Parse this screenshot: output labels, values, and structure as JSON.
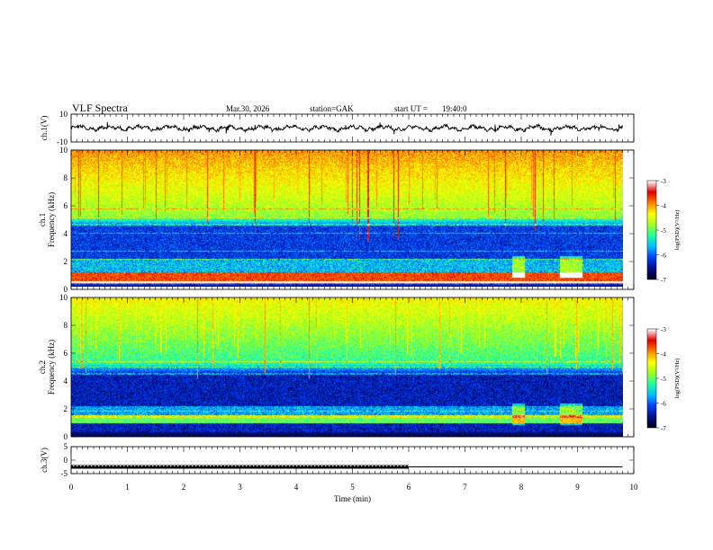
{
  "header": {
    "title": "VLF  Spectra",
    "date": "Mar.30, 2026",
    "station": "station=GAK",
    "start_label": "start  UT =",
    "start_time": "19:40:0"
  },
  "colors": {
    "trace": "#000000",
    "axis": "#000000",
    "white_band": "#ffffff",
    "colormap": [
      "#000020",
      "#00108a",
      "#0040ff",
      "#00c0ff",
      "#20ffa0",
      "#a0ff20",
      "#ffff00",
      "#ff8000",
      "#e00000",
      "#ffffff"
    ]
  },
  "chart_data": [
    {
      "type": "line",
      "name": "ch1-waveform",
      "ylabel": "ch.1(V)",
      "ylim": [
        -10,
        10
      ],
      "yticks": [
        "10",
        "-10"
      ],
      "xlim": [
        0,
        10
      ],
      "series": [
        {
          "name": "ch.1",
          "description": "fluctuating waveform",
          "mean": 0,
          "amplitude": 2.0
        }
      ]
    },
    {
      "type": "heatmap",
      "name": "ch1-spectrogram",
      "ylabel": "ch.1\nFrequency  (kHz)",
      "ylim": [
        0,
        10
      ],
      "yticks": [
        "0",
        "2",
        "4",
        "6",
        "8",
        "10"
      ],
      "xlim": [
        0,
        9.8
      ],
      "colorbar": {
        "label": "log(PSD)(V²/Hz)",
        "range": [
          -7,
          -3
        ],
        "ticks": [
          "-3",
          "-4",
          "-5",
          "-6",
          "-7"
        ]
      },
      "features": {
        "noise_floor_khz_0_to_5": -6.2,
        "sferic_level_above_5khz": -4.8,
        "band_0.4_to_1.2_khz": -3.6
      }
    },
    {
      "type": "heatmap",
      "name": "ch2-spectrogram",
      "ylabel": "ch.2\nFrequency  (kHz)",
      "ylim": [
        0,
        10
      ],
      "yticks": [
        "0",
        "2",
        "4",
        "6",
        "8",
        "10"
      ],
      "xlim": [
        0,
        9.8
      ],
      "colorbar": {
        "label": "log(PSD)(V²/Hz)",
        "range": [
          -7,
          -3
        ],
        "ticks": [
          "-3",
          "-4",
          "-5",
          "-6",
          "-7"
        ]
      },
      "features": {
        "noise_floor_khz_0_to_5": -6.4,
        "sferic_level_above_5khz": -5.2,
        "band_1.0_to_1.6_khz": -5.0
      }
    },
    {
      "type": "line",
      "name": "ch3-signal",
      "ylabel": "ch.3(V)",
      "ylim": [
        -5,
        5
      ],
      "yticks": [
        "5",
        "0",
        "-5"
      ],
      "xlabel": "Time  (min)",
      "xlim": [
        0,
        10
      ],
      "xticks": [
        "0",
        "1",
        "2",
        "3",
        "4",
        "5",
        "6",
        "7",
        "8",
        "9",
        "10"
      ],
      "series": [
        {
          "name": "ch.3-pulsed",
          "x": [
            0,
            6
          ],
          "y": -2.5
        },
        {
          "name": "ch.3-flat",
          "x": [
            6,
            9.8
          ],
          "y": -2.5
        }
      ]
    }
  ]
}
